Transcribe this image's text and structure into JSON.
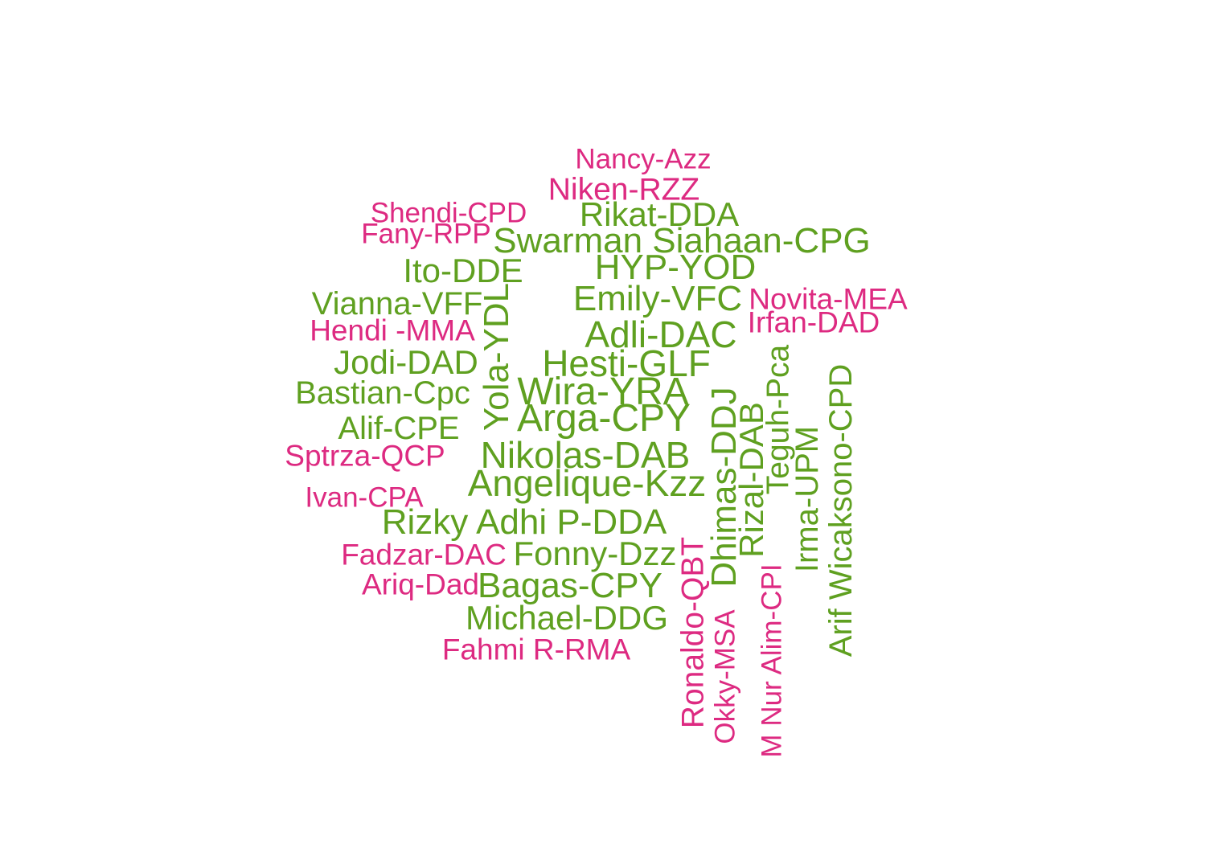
{
  "colors": {
    "green": "#5fa020",
    "pink": "#dd2a81"
  },
  "words": [
    {
      "text": "Nancy-Azz",
      "color": "pink",
      "vertical": false
    },
    {
      "text": "Niken-RZZ",
      "color": "pink",
      "vertical": false
    },
    {
      "text": "Shendi-CPD",
      "color": "pink",
      "vertical": false
    },
    {
      "text": "Rikat-DDA",
      "color": "green",
      "vertical": false
    },
    {
      "text": "Fany-RPP",
      "color": "pink",
      "vertical": false
    },
    {
      "text": "Swarman Siahaan-CPG",
      "color": "green",
      "vertical": false
    },
    {
      "text": "Ito-DDE",
      "color": "green",
      "vertical": false
    },
    {
      "text": "HYP-YOD",
      "color": "green",
      "vertical": false
    },
    {
      "text": "Vianna-VFF",
      "color": "green",
      "vertical": false
    },
    {
      "text": "Emily-VFC",
      "color": "green",
      "vertical": false
    },
    {
      "text": "Novita-MEA",
      "color": "pink",
      "vertical": false
    },
    {
      "text": "Irfan-DAD",
      "color": "pink",
      "vertical": false
    },
    {
      "text": "Hendi -MMA",
      "color": "pink",
      "vertical": false
    },
    {
      "text": "Adli-DAC",
      "color": "green",
      "vertical": false
    },
    {
      "text": "Jodi-DAD",
      "color": "green",
      "vertical": false
    },
    {
      "text": "Hesti-GLF",
      "color": "green",
      "vertical": false
    },
    {
      "text": "Bastian-Cpc",
      "color": "green",
      "vertical": false
    },
    {
      "text": "Wira-YRA",
      "color": "green",
      "vertical": false
    },
    {
      "text": "Arga-CPY",
      "color": "green",
      "vertical": false
    },
    {
      "text": "Alif-CPE",
      "color": "green",
      "vertical": false
    },
    {
      "text": "Sptrza-QCP",
      "color": "pink",
      "vertical": false
    },
    {
      "text": "Nikolas-DAB",
      "color": "green",
      "vertical": false
    },
    {
      "text": "Angelique-Kzz",
      "color": "green",
      "vertical": false
    },
    {
      "text": "Ivan-CPA",
      "color": "pink",
      "vertical": false
    },
    {
      "text": "Rizky Adhi P-DDA",
      "color": "green",
      "vertical": false
    },
    {
      "text": "Fadzar-DAC",
      "color": "pink",
      "vertical": false
    },
    {
      "text": "Fonny-Dzz",
      "color": "green",
      "vertical": false
    },
    {
      "text": "Ariq-Dad",
      "color": "pink",
      "vertical": false
    },
    {
      "text": "Bagas-CPY",
      "color": "green",
      "vertical": false
    },
    {
      "text": "Michael-DDG",
      "color": "green",
      "vertical": false
    },
    {
      "text": "Fahmi R-RMA",
      "color": "pink",
      "vertical": false
    },
    {
      "text": "Yola-YDL",
      "color": "green",
      "vertical": true
    },
    {
      "text": "Ronaldo-QBT",
      "color": "pink",
      "vertical": true
    },
    {
      "text": "Okky-MSA",
      "color": "pink",
      "vertical": true
    },
    {
      "text": "Dhimas-DDJ",
      "color": "green",
      "vertical": true
    },
    {
      "text": "Rizal-DAB",
      "color": "green",
      "vertical": true
    },
    {
      "text": "M Nur Alim-CPI",
      "color": "pink",
      "vertical": true
    },
    {
      "text": "Teguh-Pca",
      "color": "green",
      "vertical": true
    },
    {
      "text": "Irma-UPM",
      "color": "green",
      "vertical": true
    },
    {
      "text": "Arif Wicaksono-CPD",
      "color": "green",
      "vertical": true
    }
  ]
}
